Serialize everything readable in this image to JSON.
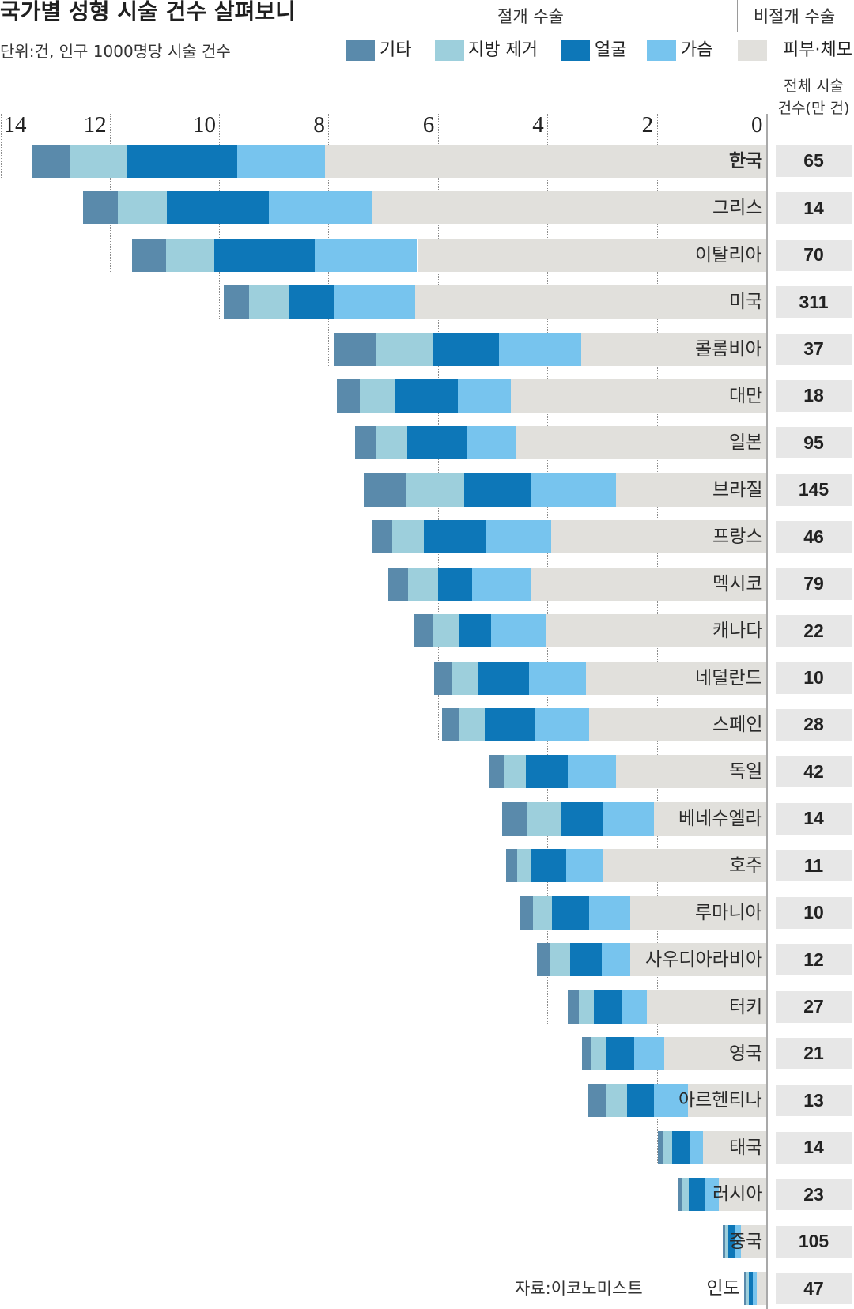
{
  "chart_data": {
    "type": "bar",
    "orientation": "horizontal",
    "stacked": true,
    "x_reversed": true,
    "grid": true,
    "legend_position": "top-right",
    "title": "국가별 성형 시술 건수 살펴보니",
    "subtitle": "단위:건, 인구 1000명당 시술 건수",
    "xlim": [
      0,
      14
    ],
    "xticks": [
      14,
      12,
      10,
      8,
      6,
      4,
      2,
      0
    ],
    "categories": [
      "한국",
      "그리스",
      "이탈리아",
      "미국",
      "콜롬비아",
      "대만",
      "일본",
      "브라질",
      "프랑스",
      "멕시코",
      "캐나다",
      "네덜란드",
      "스페인",
      "독일",
      "베네수엘라",
      "호주",
      "루마니아",
      "사우디아라비아",
      "터키",
      "영국",
      "아르헨티나",
      "태국",
      "러시아",
      "중국",
      "인도"
    ],
    "series_groups": [
      {
        "name": "절개 수술",
        "series": [
          {
            "name": "기타",
            "color": "#5a8aab",
            "values": [
              0.7,
              0.64,
              0.62,
              0.47,
              0.76,
              0.41,
              0.38,
              0.76,
              0.37,
              0.37,
              0.33,
              0.33,
              0.32,
              0.27,
              0.47,
              0.2,
              0.24,
              0.23,
              0.2,
              0.15,
              0.33,
              0.09,
              0.08,
              0.05,
              0.03
            ]
          },
          {
            "name": "지방 제거",
            "color": "#9dcfdc",
            "values": [
              1.05,
              0.9,
              0.88,
              0.73,
              1.05,
              0.64,
              0.58,
              1.07,
              0.58,
              0.55,
              0.49,
              0.47,
              0.47,
              0.4,
              0.62,
              0.24,
              0.35,
              0.37,
              0.27,
              0.27,
              0.38,
              0.17,
              0.12,
              0.06,
              0.05
            ]
          },
          {
            "name": "얼굴",
            "color": "#0d77b8",
            "values": [
              2.01,
              1.86,
              1.84,
              0.82,
              1.19,
              1.16,
              1.08,
              1.23,
              1.13,
              0.62,
              0.58,
              0.94,
              0.91,
              0.78,
              0.76,
              0.65,
              0.68,
              0.58,
              0.5,
              0.52,
              0.5,
              0.33,
              0.29,
              0.12,
              0.08
            ]
          },
          {
            "name": "가슴",
            "color": "#77c4ee",
            "values": [
              1.6,
              1.89,
              1.87,
              1.49,
              1.51,
              0.96,
              0.91,
              1.54,
              1.2,
              1.08,
              1.0,
              1.03,
              0.99,
              0.87,
              0.93,
              0.68,
              0.76,
              0.53,
              0.47,
              0.56,
              0.62,
              0.23,
              0.26,
              0.11,
              0.06
            ]
          }
        ]
      },
      {
        "name": "비절개 수술",
        "series": [
          {
            "name": "피부·체모",
            "color": "#e1e0dc",
            "values": [
              8.07,
              7.2,
              6.38,
              6.41,
              3.38,
              4.67,
              4.57,
              2.75,
              3.93,
              4.29,
              4.03,
              3.3,
              3.24,
              2.75,
              2.05,
              2.98,
              2.48,
              2.48,
              2.18,
              1.86,
              1.43,
              1.16,
              0.87,
              0.46,
              0.18
            ]
          }
        ]
      }
    ],
    "totals": {
      "label_line1": "전체 시술",
      "label_line2": "건수(만 건)",
      "values": [
        65,
        14,
        70,
        311,
        37,
        18,
        95,
        145,
        46,
        79,
        22,
        10,
        28,
        42,
        14,
        11,
        10,
        12,
        27,
        21,
        13,
        14,
        23,
        105,
        47
      ]
    }
  },
  "source": "자료:이코노미스트"
}
